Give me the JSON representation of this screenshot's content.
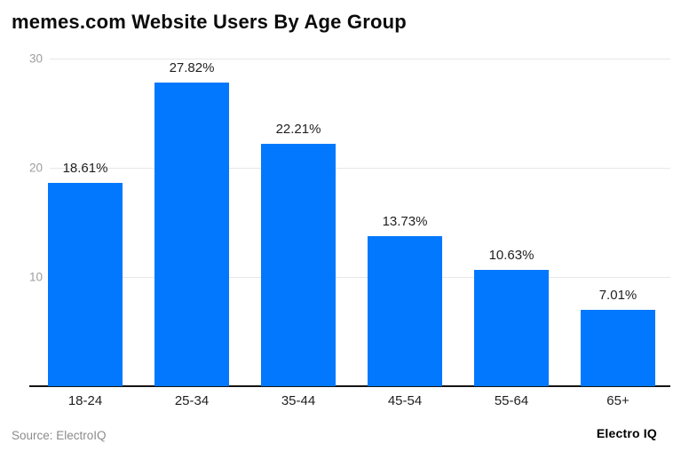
{
  "title": "memes.com Website Users By Age Group",
  "footer": {
    "source": "Source: ElectroIQ",
    "brand": "Electro IQ"
  },
  "colors": {
    "bar": "#0178fd",
    "gridline": "#e7e7e7",
    "axis_line": "#141414",
    "tick_label": "#9e9e9e",
    "value_label": "#1f1f1f",
    "source_text": "#8c8c8c",
    "title_text": "#0b0b0b"
  },
  "chart_data": {
    "type": "bar",
    "title": "memes.com Website Users By Age Group",
    "categories": [
      "18-24",
      "25-34",
      "35-44",
      "45-54",
      "55-64",
      "65+"
    ],
    "values": [
      18.61,
      27.82,
      22.21,
      13.73,
      10.63,
      7.01
    ],
    "value_labels": [
      "18.61%",
      "27.82%",
      "22.21%",
      "13.73%",
      "10.63%",
      "7.01%"
    ],
    "xlabel": "",
    "ylabel": "",
    "ylim": [
      0,
      30
    ],
    "y_ticks": [
      10,
      20,
      30
    ],
    "grid": "horizontal",
    "legend": "none",
    "bar_color": "#0178fd"
  }
}
